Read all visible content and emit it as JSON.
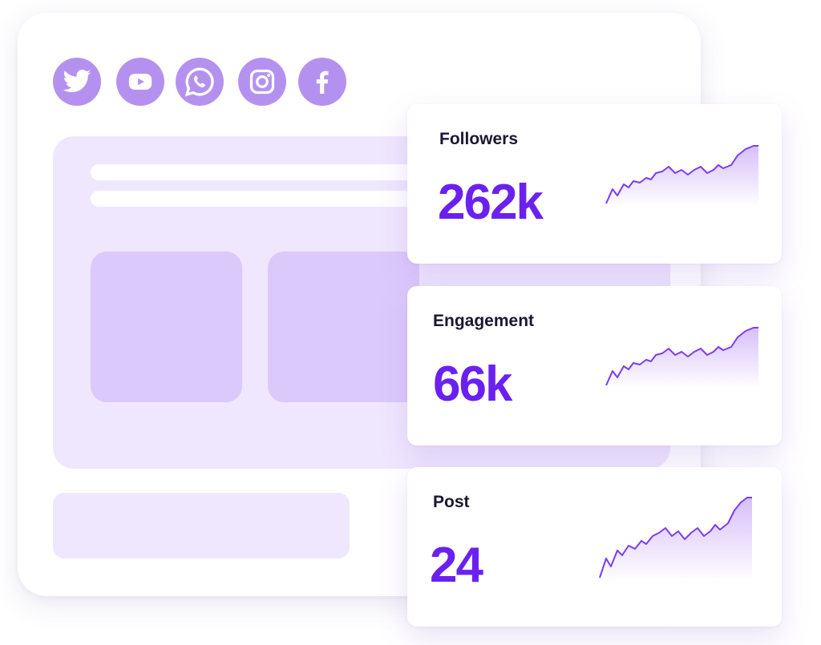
{
  "social_icons": [
    {
      "name": "twitter-icon",
      "color": "#b591ef"
    },
    {
      "name": "youtube-icon",
      "color": "#b591ef"
    },
    {
      "name": "whatsapp-icon",
      "color": "#b591ef"
    },
    {
      "name": "instagram-icon",
      "color": "#b591ef"
    },
    {
      "name": "facebook-icon",
      "color": "#b591ef"
    }
  ],
  "stats": [
    {
      "label": "Followers",
      "value": "262k"
    },
    {
      "label": "Engagement",
      "value": "66k"
    },
    {
      "label": "Post",
      "value": "24"
    }
  ],
  "colors": {
    "accent": "#6a21f0",
    "icon_bg": "#b591ef",
    "panel": "#efe7fd",
    "tile": "#dbc9fb",
    "spark_line": "#7a3df0"
  }
}
